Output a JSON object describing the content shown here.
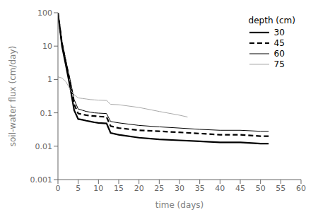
{
  "chart_data": {
    "type": "line",
    "xlabel": "time (days)",
    "ylabel": "soil-water flux (cm/day)",
    "legend_title": "depth (cm)",
    "xlim": [
      0,
      60
    ],
    "ylim": [
      0.001,
      100
    ],
    "xticks": [
      0,
      5,
      10,
      15,
      20,
      25,
      30,
      35,
      40,
      45,
      50,
      55,
      60
    ],
    "yticks": [
      0.001,
      0.01,
      0.1,
      1,
      10,
      100
    ],
    "log": "y",
    "grid": false,
    "legend": "upper right",
    "series": [
      {
        "name": "30",
        "color": "#000000",
        "line_style": "solid",
        "x": [
          0,
          1,
          2,
          3,
          4,
          5,
          6,
          7,
          8,
          9,
          10,
          12,
          13,
          15,
          20,
          25,
          30,
          35,
          40,
          45,
          50,
          52
        ],
        "values": [
          100,
          10,
          2.5,
          0.6,
          0.12,
          0.065,
          0.062,
          0.058,
          0.055,
          0.052,
          0.05,
          0.048,
          0.025,
          0.022,
          0.018,
          0.016,
          0.015,
          0.014,
          0.013,
          0.013,
          0.012,
          0.012
        ]
      },
      {
        "name": "45",
        "color": "#000000",
        "line_style": "dashed",
        "x": [
          0,
          1,
          2,
          3,
          4,
          5,
          6,
          7,
          8,
          9,
          10,
          12,
          13,
          15,
          20,
          25,
          30,
          35,
          40,
          45,
          50,
          52
        ],
        "values": [
          100,
          12,
          3.0,
          0.8,
          0.18,
          0.095,
          0.09,
          0.085,
          0.082,
          0.08,
          0.078,
          0.075,
          0.04,
          0.035,
          0.03,
          0.028,
          0.026,
          0.024,
          0.022,
          0.022,
          0.02,
          0.02
        ]
      },
      {
        "name": "60",
        "color": "#000000",
        "line_style": "solid",
        "x": [
          0,
          1,
          2,
          3,
          4,
          5,
          6,
          7,
          8,
          9,
          10,
          12,
          13,
          15,
          20,
          25,
          30,
          35,
          40,
          45,
          50,
          52
        ],
        "values": [
          100,
          14,
          3.5,
          1.0,
          0.25,
          0.13,
          0.12,
          0.11,
          0.105,
          0.1,
          0.098,
          0.095,
          0.055,
          0.05,
          0.042,
          0.038,
          0.035,
          0.032,
          0.03,
          0.03,
          0.028,
          0.028
        ]
      },
      {
        "name": "75",
        "color": "#aaaaaa",
        "line_style": "solid",
        "x": [
          0,
          1,
          2,
          3,
          4,
          5,
          6,
          7,
          8,
          9,
          10,
          12,
          13,
          15,
          20,
          25,
          30,
          32
        ],
        "values": [
          1.2,
          1.1,
          0.85,
          0.5,
          0.35,
          0.28,
          0.27,
          0.26,
          0.25,
          0.245,
          0.24,
          0.235,
          0.18,
          0.175,
          0.145,
          0.11,
          0.085,
          0.075
        ]
      }
    ]
  }
}
